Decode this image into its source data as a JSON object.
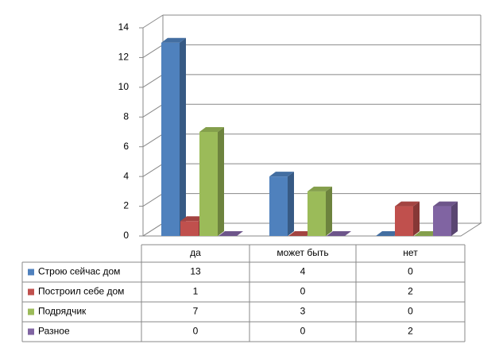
{
  "chart_data": {
    "type": "bar",
    "categories": [
      "да",
      "может быть",
      "нет"
    ],
    "series": [
      {
        "name": "Строю сейчас дом",
        "color": "#4f81bd",
        "values": [
          13,
          4,
          0
        ]
      },
      {
        "name": "Построил себе дом",
        "color": "#c0504d",
        "values": [
          1,
          0,
          2
        ]
      },
      {
        "name": "Подрядчик",
        "color": "#9bbb59",
        "values": [
          7,
          3,
          0
        ]
      },
      {
        "name": "Разное",
        "color": "#8064a2",
        "values": [
          0,
          0,
          2
        ]
      }
    ],
    "ylim": [
      0,
      14
    ],
    "yticks": [
      0,
      2,
      4,
      6,
      8,
      10,
      12,
      14
    ],
    "grid": true
  }
}
